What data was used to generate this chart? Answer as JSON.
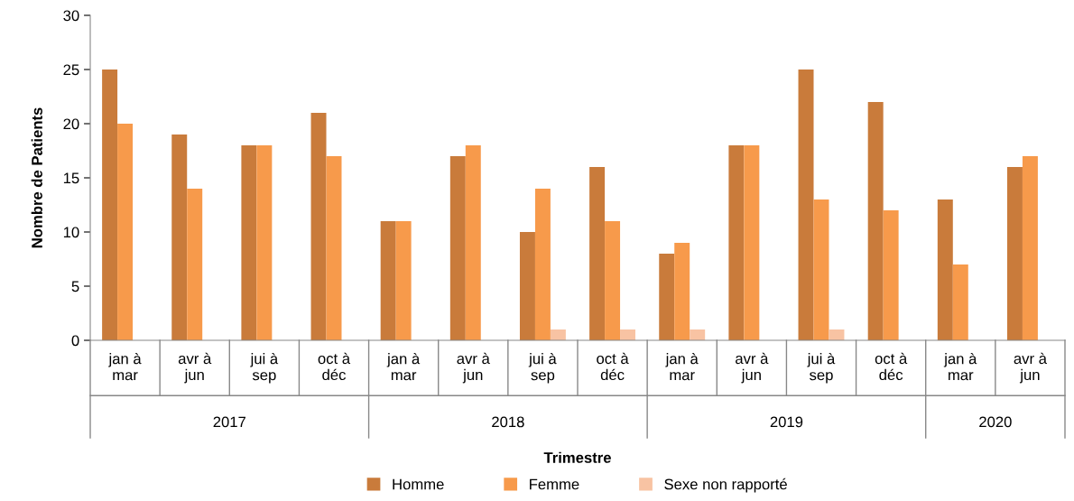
{
  "chart_data": {
    "type": "bar",
    "xlabel": "Trimestre",
    "ylabel": "Nombre de Patients",
    "categories": [
      "jan à\nmar",
      "avr à\njun",
      "jui à\nsep",
      "oct à\ndéc",
      "jan à\nmar",
      "avr à\njun",
      "jui à\nsep",
      "oct à\ndéc",
      "jan à\nmar",
      "avr à\njun",
      "jui à\nsep",
      "oct à\ndéc",
      "jan à\nmar",
      "avr à\njun"
    ],
    "series": [
      {
        "name": "Homme",
        "color": "#c97b3b",
        "values": [
          25,
          19,
          18,
          21,
          11,
          17,
          10,
          16,
          8,
          18,
          25,
          22,
          13,
          16
        ]
      },
      {
        "name": "Femme",
        "color": "#f79a4b",
        "values": [
          20,
          14,
          18,
          17,
          11,
          18,
          14,
          11,
          9,
          18,
          13,
          12,
          7,
          17
        ]
      },
      {
        "name": "Sexe non rapporté",
        "color": "#f8c3a3",
        "values": [
          0,
          0,
          0,
          0,
          0,
          0,
          1,
          1,
          1,
          0,
          1,
          0,
          0,
          0
        ]
      }
    ],
    "annotations": [
      "2017",
      "2018",
      "2019",
      "2020"
    ],
    "ylim": [
      0,
      30
    ],
    "yticks": [
      0,
      5,
      10,
      15,
      20,
      25,
      30
    ],
    "grid": false,
    "legend": "bottom"
  }
}
